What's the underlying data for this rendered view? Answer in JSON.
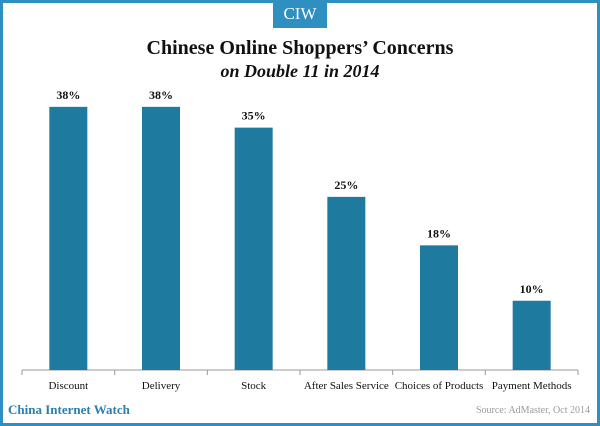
{
  "logo": "CIW",
  "footer": {
    "brand": "China Internet Watch",
    "source": "Source: AdMaster, Oct 2014"
  },
  "colors": {
    "bar": "#1f7aa0",
    "frame": "#2e8fc0",
    "brand_text": "#2a7fb0"
  },
  "chart_data": {
    "type": "bar",
    "title": "Chinese Online Shoppers’ Concerns",
    "subtitle": "on Double 11 in 2014",
    "categories": [
      "Discount",
      "Delivery",
      "Stock",
      "After Sales Service",
      "Choices of Products",
      "Payment Methods"
    ],
    "values": [
      38,
      38,
      35,
      25,
      18,
      10
    ],
    "data_labels": [
      "38%",
      "38%",
      "35%",
      "25%",
      "18%",
      "10%"
    ],
    "unit": "%",
    "ylim": [
      0,
      40
    ],
    "grid": false,
    "legend": "none"
  }
}
